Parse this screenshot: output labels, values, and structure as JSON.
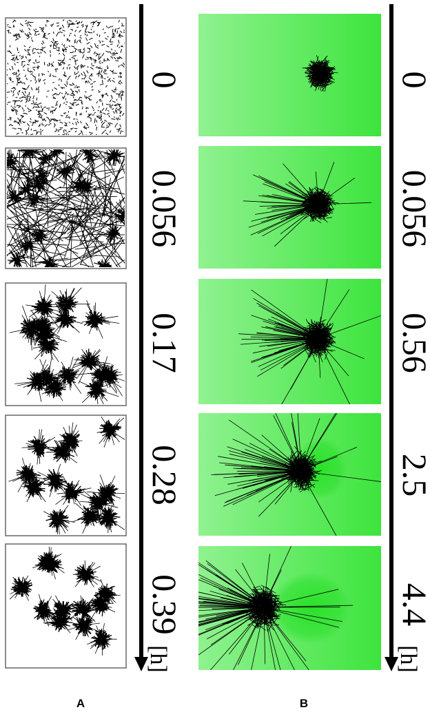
{
  "panel_a": {
    "label": "A",
    "time_labels": [
      "0",
      "0.056",
      "0.17",
      "0.28",
      "0.39"
    ],
    "unit": "[h]"
  },
  "panel_b": {
    "label": "B",
    "time_labels": [
      "0",
      "0.056",
      "0.56",
      "2.5",
      "4.4"
    ],
    "unit": "[h]"
  },
  "colors": {
    "green_light": "#8cf08c",
    "green_dark": "#3fe63f",
    "ink": "#000000"
  }
}
